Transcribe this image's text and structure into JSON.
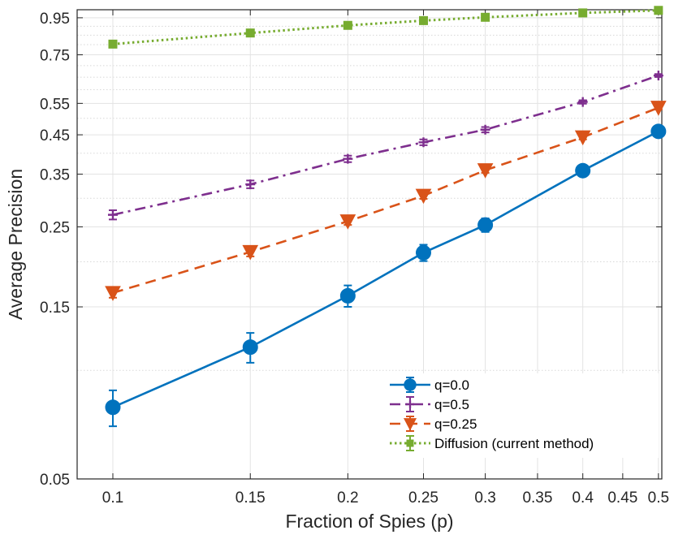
{
  "chart_data": {
    "type": "line",
    "title": "",
    "xlabel": "Fraction of Spies (p)",
    "ylabel": "Average Precision",
    "xscale": "log",
    "yscale": "log",
    "xlim": [
      0.09,
      0.505
    ],
    "ylim": [
      0.05,
      1.0
    ],
    "xticks": [
      0.1,
      0.15,
      0.2,
      0.25,
      0.3,
      0.35,
      0.4,
      0.45,
      0.5
    ],
    "xtick_labels": [
      "0.1",
      "0.15",
      "0.2",
      "0.25",
      "0.3",
      "0.35",
      "0.4",
      "0.45",
      "0.5"
    ],
    "yticks": [
      0.05,
      0.15,
      0.25,
      0.35,
      0.45,
      0.55,
      0.75,
      0.95
    ],
    "ytick_labels": [
      "0.05",
      "0.15",
      "0.25",
      "0.35",
      "0.45",
      "0.55",
      "0.75",
      "0.95"
    ],
    "grid": true,
    "legend_position": "bottom-right",
    "x": [
      0.1,
      0.15,
      0.2,
      0.25,
      0.3,
      0.4,
      0.5
    ],
    "series": [
      {
        "name": "q=0.0",
        "color": "#0072BD",
        "dash": "solid",
        "marker": "circle",
        "values": [
          0.079,
          0.116,
          0.161,
          0.212,
          0.253,
          0.358,
          0.46
        ],
        "errors": [
          0.009,
          0.011,
          0.011,
          0.011,
          0.011,
          0.011,
          0.008
        ]
      },
      {
        "name": "q=0.5",
        "color": "#7E2F8E",
        "dash": "dashdot",
        "marker": "plus",
        "values": [
          0.27,
          0.328,
          0.386,
          0.429,
          0.465,
          0.555,
          0.657
        ],
        "errors": [
          0.008,
          0.008,
          0.008,
          0.008,
          0.008,
          0.006,
          0.006
        ]
      },
      {
        "name": "q=0.25",
        "color": "#D95319",
        "dash": "dashed",
        "marker": "triangle-down",
        "values": [
          0.164,
          0.213,
          0.259,
          0.305,
          0.359,
          0.443,
          0.535
        ],
        "errors": [
          0.005,
          0.006,
          0.006,
          0.006,
          0.006,
          0.006,
          0.006
        ]
      },
      {
        "name": "Diffusion (current method)",
        "color": "#77AC30",
        "dash": "dotted",
        "marker": "square",
        "values": [
          0.803,
          0.862,
          0.905,
          0.933,
          0.953,
          0.98,
          0.996
        ],
        "errors": [
          0.003,
          0.003,
          0.003,
          0.003,
          0.003,
          0.003,
          0.003
        ]
      }
    ]
  }
}
